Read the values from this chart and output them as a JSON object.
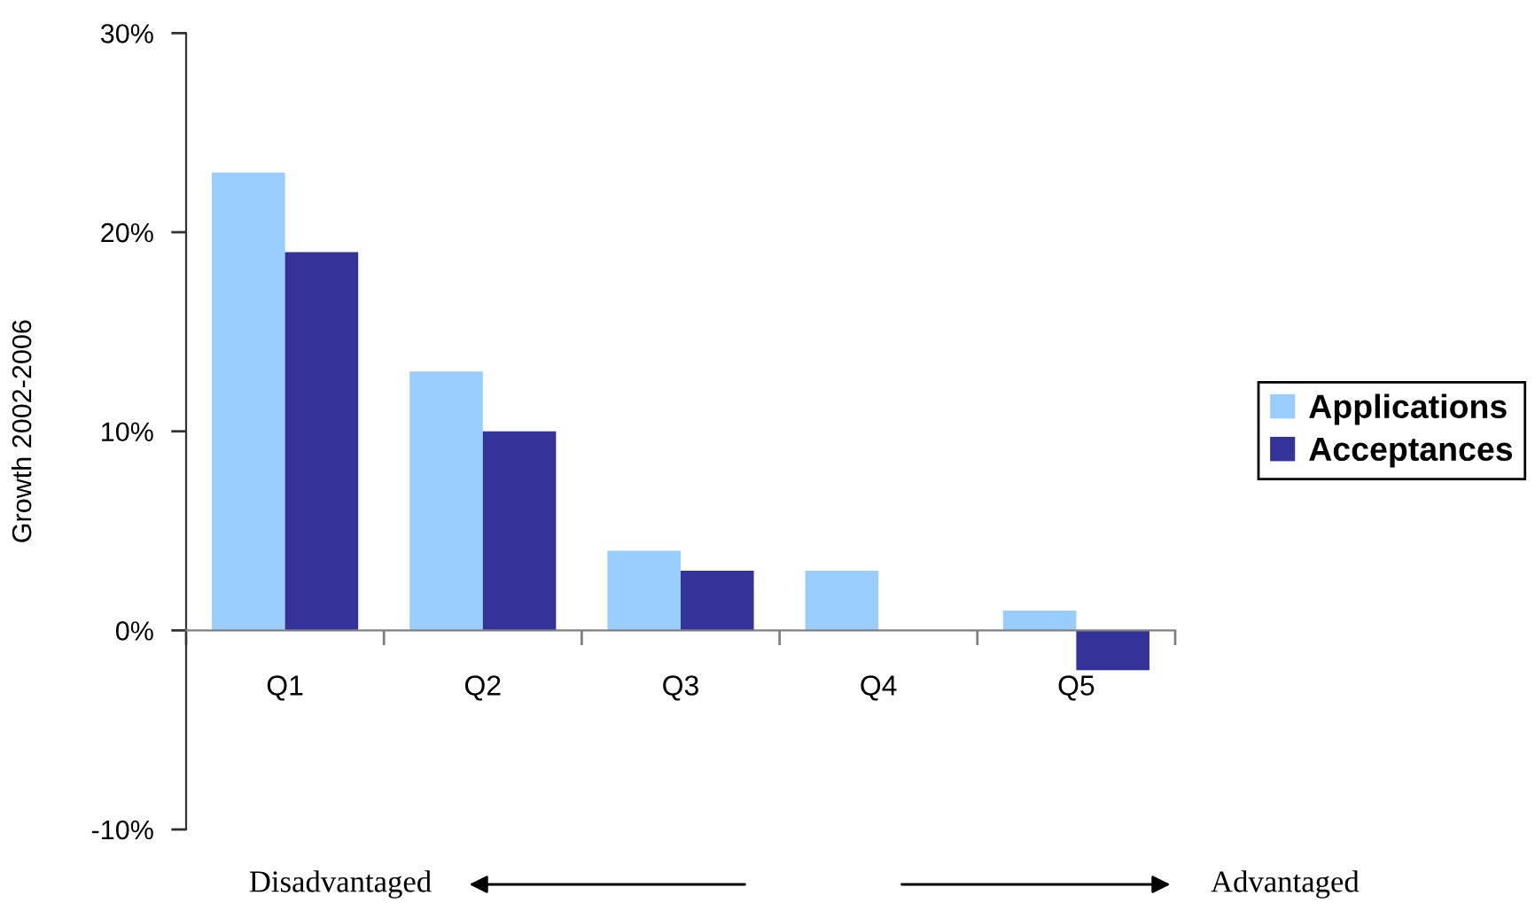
{
  "chart_data": {
    "type": "bar",
    "ylabel": "Growth 2002-2006",
    "categories": [
      "Q1",
      "Q2",
      "Q3",
      "Q4",
      "Q5"
    ],
    "series": [
      {
        "name": "Applications",
        "color": "#99ccff",
        "values": [
          23,
          13,
          4,
          3,
          1
        ]
      },
      {
        "name": "Acceptances",
        "color": "#333399",
        "values": [
          19,
          10,
          3,
          0,
          -2
        ]
      }
    ],
    "ylim": [
      -10,
      30
    ],
    "yticks": [
      {
        "value": -10,
        "label": "-10%"
      },
      {
        "value": 0,
        "label": "0%"
      },
      {
        "value": 10,
        "label": "10%"
      },
      {
        "value": 20,
        "label": "20%"
      },
      {
        "value": 30,
        "label": "30%"
      }
    ],
    "grid": false,
    "legend": "right",
    "annotations": [
      "Disadvantaged",
      "Advantaged"
    ]
  }
}
